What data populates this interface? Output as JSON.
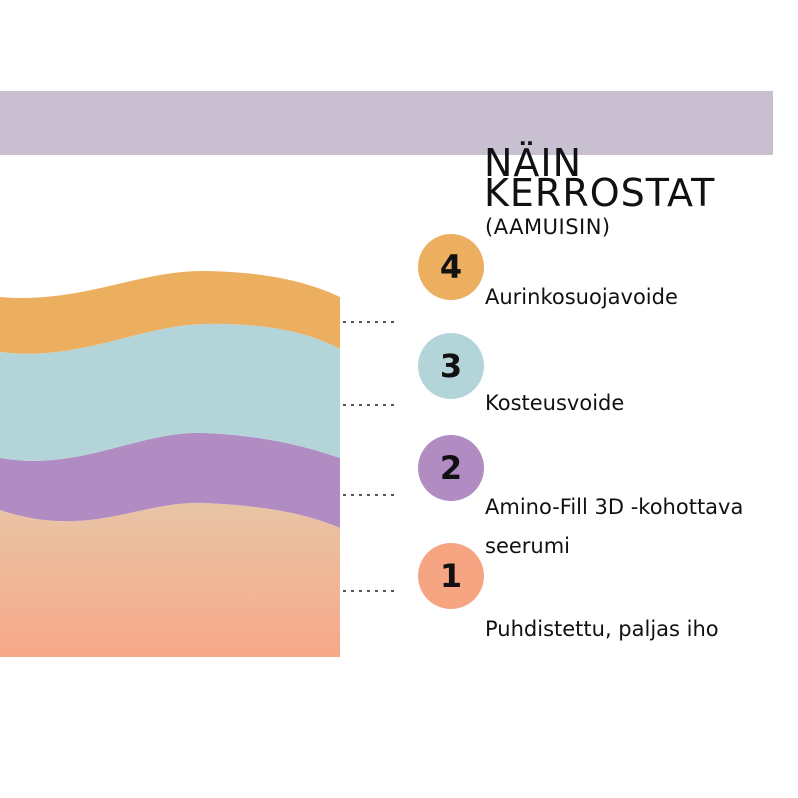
{
  "title_line1": "NÄIN",
  "title_line2": "KERROSTAT",
  "subtitle": "(AAMUISIN)",
  "layers": [
    {
      "number": "4",
      "label": "Aurinkosuojavoide",
      "color": "#ecaf60"
    },
    {
      "number": "3",
      "label": "Kosteusvoide",
      "color": "#b3d5da"
    },
    {
      "number": "2",
      "label_line1": "Amino-Fill 3D -kohottava",
      "label_line2": "seerumi",
      "color": "#b08cc3"
    },
    {
      "number": "1",
      "label": "Puhdistettu, paljas iho",
      "color": "#f6a582"
    }
  ],
  "colors": {
    "top_band": "#c8c0d0",
    "skin_top": "#e8c5a6",
    "skin_bottom": "#f7a888",
    "dots": "#555555"
  }
}
